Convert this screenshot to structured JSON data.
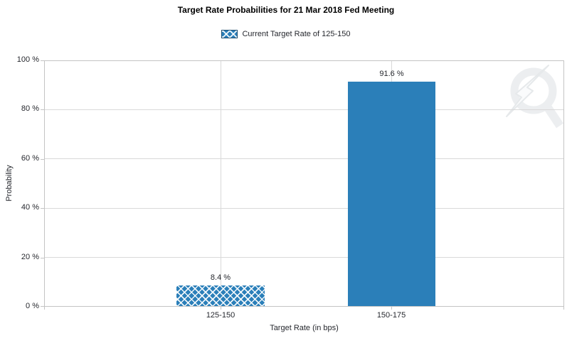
{
  "chart_data": {
    "type": "bar",
    "title": "Target Rate Probabilities for 21 Mar 2018 Fed Meeting",
    "legend_label": "Current Target Rate of 125-150",
    "legend_swatch_style": "crosshatch",
    "legend_position": "top",
    "categories": [
      "125-150",
      "150-175"
    ],
    "values": [
      8.4,
      91.6
    ],
    "value_labels": [
      "8.4 %",
      "91.6 %"
    ],
    "bar_styles": [
      "crosshatch",
      "solid"
    ],
    "xlabel": "Target Rate (in bps)",
    "ylabel": "Probability",
    "ylim": [
      0,
      100
    ],
    "yticks": [
      "100 %",
      "80 %",
      "60 %",
      "40 %",
      "20 %",
      "0 %"
    ],
    "grid": true,
    "colors": {
      "bar": "#2b7fb9",
      "swatch_border": "#1d4d70",
      "axis_line": "#c4c4c4",
      "gridline": "#d9d9d9",
      "text": "#26282e",
      "watermark": "#eceef0"
    },
    "watermark": "quikstrike-logo"
  }
}
